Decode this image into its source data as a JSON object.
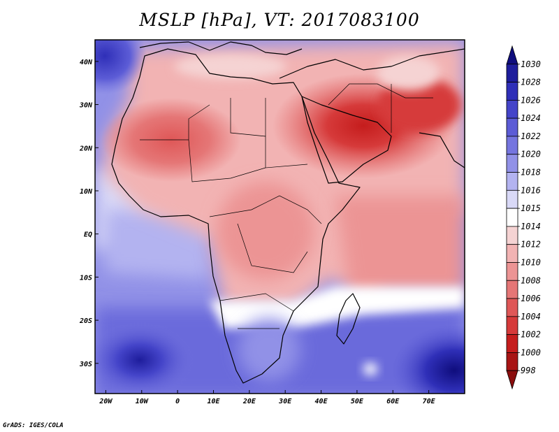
{
  "title": "MSLP [hPa], VT: 2017083100",
  "credit": "GrADS: IGES/COLA",
  "map": {
    "lon_range": [
      -23,
      80
    ],
    "lat_range": [
      -37,
      45
    ],
    "lon_ticks": [
      {
        "value": -20,
        "label": "20W"
      },
      {
        "value": -10,
        "label": "10W"
      },
      {
        "value": 0,
        "label": "0"
      },
      {
        "value": 10,
        "label": "10E"
      },
      {
        "value": 20,
        "label": "20E"
      },
      {
        "value": 30,
        "label": "30E"
      },
      {
        "value": 40,
        "label": "40E"
      },
      {
        "value": 50,
        "label": "50E"
      },
      {
        "value": 60,
        "label": "60E"
      },
      {
        "value": 70,
        "label": "70E"
      }
    ],
    "lat_ticks": [
      {
        "value": 40,
        "label": "40N"
      },
      {
        "value": 30,
        "label": "30N"
      },
      {
        "value": 20,
        "label": "20N"
      },
      {
        "value": 10,
        "label": "10N"
      },
      {
        "value": 0,
        "label": "EQ"
      },
      {
        "value": -10,
        "label": "10S"
      },
      {
        "value": -20,
        "label": "20S"
      },
      {
        "value": -30,
        "label": "30S"
      }
    ]
  },
  "colorbar": {
    "levels": [
      "1030",
      "1028",
      "1026",
      "1024",
      "1022",
      "1020",
      "1018",
      "1016",
      "1015",
      "1014",
      "1012",
      "1010",
      "1008",
      "1006",
      "1004",
      "1002",
      "1000",
      "998"
    ],
    "colors": [
      "#0f0d7d",
      "#1e1d9c",
      "#2f2fb8",
      "#4444c9",
      "#5c5cd6",
      "#7575df",
      "#9191e7",
      "#b3b3f0",
      "#d9d9f7",
      "#ffffff",
      "#f5d3d3",
      "#f2b3b3",
      "#ec9494",
      "#e57676",
      "#df5757",
      "#d63a3a",
      "#c51d1d",
      "#a81515",
      "#8a0d0d"
    ]
  },
  "pressure_fields": {
    "sahara_heat_low": {
      "lon": 5,
      "lat": 21,
      "value": 1006
    },
    "arabian_heat_low": {
      "lon": 50,
      "lat": 26,
      "value": 1002
    },
    "azores_high": {
      "lon": -23,
      "lat": 40,
      "value": 1024
    },
    "st_helena_high": {
      "lon": -7,
      "lat": -29,
      "value": 1026
    },
    "mascarene_high": {
      "lon": 78,
      "lat": -34,
      "value": 1028
    }
  }
}
